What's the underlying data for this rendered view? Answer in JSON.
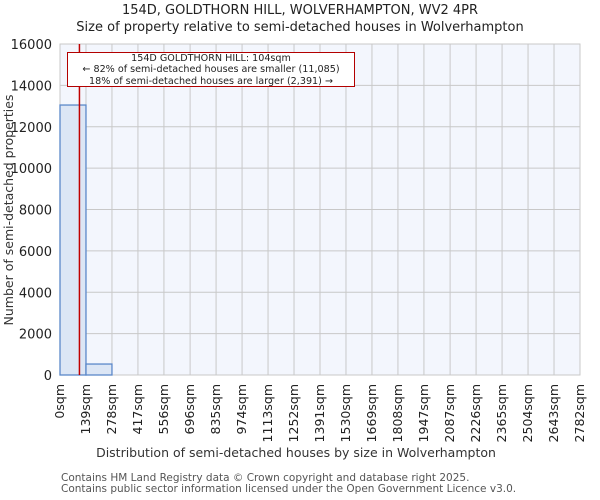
{
  "header": {
    "title": "154D, GOLDTHORN HILL, WOLVERHAMPTON, WV2 4PR",
    "subtitle": "Size of property relative to semi-detached houses in Wolverhampton"
  },
  "annotation": {
    "line1": "154D GOLDTHORN HILL: 104sqm",
    "line2": "← 82% of semi-detached houses are smaller (11,085)",
    "line3": "18% of semi-detached houses are larger (2,391) →"
  },
  "footer": {
    "line1": "Contains HM Land Registry data © Crown copyright and database right 2025.",
    "line2": "Contains public sector information licensed under the Open Government Licence v3.0."
  },
  "colors": {
    "bar_fill": "#dce6f5",
    "bar_edge": "#5b88c9",
    "plot_bg": "#f3f6fd",
    "grid": "#c8c8c8",
    "marker": "#c00000"
  },
  "chart_data": {
    "type": "bar",
    "title": "154D, GOLDTHORN HILL, WOLVERHAMPTON, WV2 4PR",
    "subtitle": "Size of property relative to semi-detached houses in Wolverhampton",
    "xlabel": "Distribution of semi-detached houses by size in Wolverhampton",
    "ylabel": "Number of semi-detached properties",
    "categories": [
      "0sqm",
      "139sqm",
      "278sqm",
      "417sqm",
      "556sqm",
      "696sqm",
      "835sqm",
      "974sqm",
      "1113sqm",
      "1252sqm",
      "1391sqm",
      "1530sqm",
      "1669sqm",
      "1808sqm",
      "1947sqm",
      "2087sqm",
      "2226sqm",
      "2365sqm",
      "2504sqm",
      "2643sqm",
      "2782sqm"
    ],
    "bin_edges": [
      0,
      139,
      278,
      417,
      556,
      696,
      835,
      974,
      1113,
      1252,
      1391,
      1530,
      1669,
      1808,
      1947,
      2087,
      2226,
      2365,
      2504,
      2643,
      2782
    ],
    "values": [
      13050,
      530,
      0,
      0,
      0,
      0,
      0,
      0,
      0,
      0,
      0,
      0,
      0,
      0,
      0,
      0,
      0,
      0,
      0,
      0
    ],
    "yticks": [
      0,
      2000,
      4000,
      6000,
      8000,
      10000,
      12000,
      14000,
      16000
    ],
    "ylim": [
      0,
      16000
    ],
    "xlim": [
      0,
      2782
    ],
    "grid": true,
    "marker": {
      "value": 104,
      "label": "154D GOLDTHORN HILL: 104sqm"
    },
    "annotations": [
      "154D GOLDTHORN HILL: 104sqm",
      "← 82% of semi-detached houses are smaller (11,085)",
      "18% of semi-detached houses are larger (2,391) →"
    ]
  }
}
